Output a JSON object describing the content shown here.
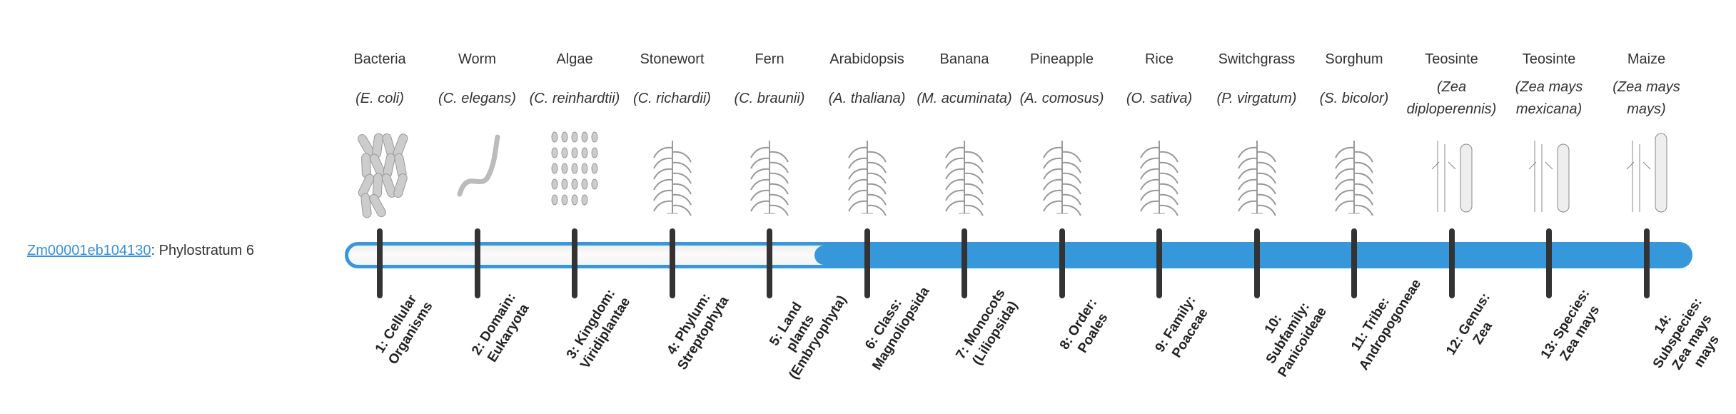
{
  "gene": {
    "id": "Zm00001eb104130",
    "suffix": ": Phylostratum 6"
  },
  "current_phylostratum": 6,
  "colors": {
    "accent": "#3797db",
    "tick": "#333333",
    "link": "#3a8fd9"
  },
  "stages": [
    {
      "common": "Bacteria",
      "sci": "(E. coli)",
      "label": "1: Cellular Organisms",
      "icon": "bacteria-icon"
    },
    {
      "common": "Worm",
      "sci": "(C. elegans)",
      "label": "2: Domain: Eukaryota",
      "icon": "worm-icon"
    },
    {
      "common": "Algae",
      "sci": "(C. reinhardtii)",
      "label": "3: Kingdom: Viridiplantae",
      "icon": "algae-icon"
    },
    {
      "common": "Stonewort",
      "sci": "(C. richardii)",
      "label": "4: Phylum: Streptophyta",
      "icon": "stonewort-icon"
    },
    {
      "common": "Fern",
      "sci": "(C. braunii)",
      "label": "5: Land plants (Embryophyta)",
      "icon": "fern-icon"
    },
    {
      "common": "Arabidopsis",
      "sci": "(A. thaliana)",
      "label": "6: Class: Magnoliopsida",
      "icon": "arabidopsis-icon"
    },
    {
      "common": "Banana",
      "sci": "(M. acuminata)",
      "label": "7: Monocots (Liliopsida)",
      "icon": "banana-icon"
    },
    {
      "common": "Pineapple",
      "sci": "(A. comosus)",
      "label": "8: Order: Poales",
      "icon": "pineapple-icon"
    },
    {
      "common": "Rice",
      "sci": "(O. sativa)",
      "label": "9: Family: Poaceae",
      "icon": "rice-icon"
    },
    {
      "common": "Switchgrass",
      "sci": "(P. virgatum)",
      "label": "10: Subfamily: Panicoideae",
      "icon": "switchgrass-icon"
    },
    {
      "common": "Sorghum",
      "sci": "(S. bicolor)",
      "label": "11: Tribe: Andropogoneae",
      "icon": "sorghum-icon"
    },
    {
      "common": "Teosinte",
      "sci": "(Zea diploperennis)",
      "label": "12: Genus: Zea",
      "icon": "teosinte-icon"
    },
    {
      "common": "Teosinte",
      "sci": "(Zea mays mexicana)",
      "label": "13: Species: Zea mays",
      "icon": "teosinte-icon"
    },
    {
      "common": "Maize",
      "sci": "(Zea mays mays)",
      "label": "14: Subspecies: Zea mays mays",
      "icon": "maize-icon"
    }
  ]
}
